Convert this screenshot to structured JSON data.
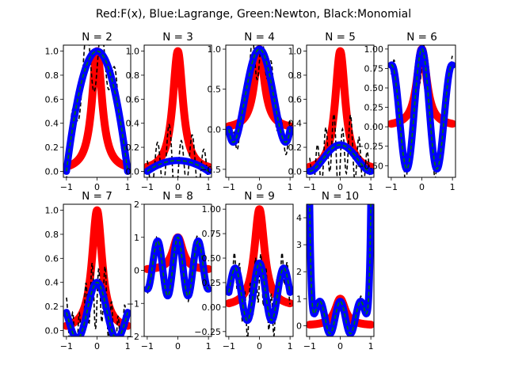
{
  "figure": {
    "suptitle": "Red:F(x), Blue:Lagrange, Green:Newton, Black:Monomial"
  },
  "colors": {
    "function": "#ff0000",
    "lagrange": "#0000ff",
    "newton": "#008000",
    "monomial": "#000000"
  },
  "chart_data": [
    {
      "type": "line",
      "title": "N = 2",
      "xlim": [
        -1,
        1
      ],
      "ylim": [
        -0.05,
        1.05
      ],
      "xticks": [
        -1,
        0,
        1
      ],
      "xtick_labels": [
        "−1",
        "0",
        "1"
      ],
      "yticks": [
        0,
        0.2,
        0.4,
        0.6,
        0.8,
        1.0
      ],
      "ytick_labels": [
        "0.0",
        "0.2",
        "0.4",
        "0.6",
        "0.8",
        "1.0"
      ],
      "interp_kind": "parabola",
      "interp_params": {
        "peak": 1.0
      }
    },
    {
      "type": "line",
      "title": "N = 3",
      "xlim": [
        -1,
        1
      ],
      "ylim": [
        -0.05,
        1.05
      ],
      "xticks": [
        -1,
        0,
        1
      ],
      "xtick_labels": [
        "−1",
        "0",
        "1"
      ],
      "yticks": [
        0,
        0.2,
        0.4,
        0.6,
        0.8,
        1.0
      ],
      "ytick_labels": [
        "0.0",
        "0.2",
        "0.4",
        "0.6",
        "0.8",
        "1.0"
      ],
      "interp_kind": "parabola",
      "interp_params": {
        "peak": 0.09
      }
    },
    {
      "type": "line",
      "title": "N = 4",
      "xlim": [
        -1,
        1
      ],
      "ylim": [
        -0.6,
        1.05
      ],
      "xticks": [
        -1,
        0,
        1
      ],
      "xtick_labels": [
        "−1",
        "0",
        "1"
      ],
      "yticks": [
        -0.5,
        0,
        0.5,
        1.0
      ],
      "ytick_labels": [
        "−0.5",
        "0.0",
        "0.5",
        "1.0"
      ],
      "interp_kind": "even_poly4",
      "interp_params": {
        "peak": 1.0,
        "min": -0.45
      }
    },
    {
      "type": "line",
      "title": "N = 5",
      "xlim": [
        -1,
        1
      ],
      "ylim": [
        -0.05,
        1.05
      ],
      "xticks": [
        -1,
        0,
        1
      ],
      "xtick_labels": [
        "−1",
        "0",
        "1"
      ],
      "yticks": [
        0,
        0.2,
        0.4,
        0.6,
        0.8,
        1.0
      ],
      "ytick_labels": [
        "0.0",
        "0.2",
        "0.4",
        "0.6",
        "0.8",
        "1.0"
      ],
      "interp_kind": "even_poly4",
      "interp_params": {
        "peak": 0.22,
        "min": 0.02
      }
    },
    {
      "type": "line",
      "title": "N = 6",
      "xlim": [
        -1,
        1
      ],
      "ylim": [
        -0.65,
        1.05
      ],
      "xticks": [
        -1,
        0,
        1
      ],
      "xtick_labels": [
        "−1",
        "0",
        "1"
      ],
      "yticks": [
        -0.5,
        -0.25,
        0,
        0.25,
        0.5,
        0.75,
        1.0
      ],
      "ytick_labels": [
        "−0.50",
        "−0.25",
        "0.00",
        "0.25",
        "0.50",
        "0.75",
        "1.00"
      ],
      "interp_kind": "cosine",
      "interp_params": {
        "base": 0.2,
        "amp": 0.8,
        "freq": 2.0
      }
    },
    {
      "type": "line",
      "title": "N = 7",
      "xlim": [
        -1,
        1
      ],
      "ylim": [
        -0.05,
        1.05
      ],
      "xticks": [
        -1,
        0,
        1
      ],
      "xtick_labels": [
        "−1",
        "0",
        "1"
      ],
      "yticks": [
        0,
        0.2,
        0.4,
        0.6,
        0.8,
        1.0
      ],
      "ytick_labels": [
        "0.0",
        "0.2",
        "0.4",
        "0.6",
        "0.8",
        "1.0"
      ],
      "interp_kind": "cosine",
      "interp_params": {
        "base": 0.15,
        "amp": 0.25,
        "freq": 1.5
      }
    },
    {
      "type": "line",
      "title": "N = 8",
      "xlim": [
        -1,
        1
      ],
      "ylim": [
        -2.0,
        2.0
      ],
      "xticks": [
        -1,
        0,
        1
      ],
      "xtick_labels": [
        "−1",
        "0",
        "1"
      ],
      "yticks": [
        -2,
        -1,
        0,
        1,
        2
      ],
      "ytick_labels": [
        "−2",
        "−1",
        "0",
        "1",
        "2"
      ],
      "interp_kind": "cosine",
      "interp_params": {
        "base": 0.1,
        "amp": 0.9,
        "freq": 3.0
      }
    },
    {
      "type": "line",
      "title": "N = 9",
      "xlim": [
        -1,
        1
      ],
      "ylim": [
        -0.3,
        1.05
      ],
      "xticks": [
        -1,
        0,
        1
      ],
      "xtick_labels": [
        "−1",
        "0",
        "1"
      ],
      "yticks": [
        -0.25,
        0,
        0.25,
        0.5,
        0.75,
        1.0
      ],
      "ytick_labels": [
        "−0.25",
        "0.00",
        "0.25",
        "0.50",
        "0.75",
        "1.00"
      ],
      "interp_kind": "cosine",
      "interp_params": {
        "base": 0.15,
        "amp": 0.3,
        "freq": 2.5
      }
    },
    {
      "type": "line",
      "title": "N = 10",
      "xlim": [
        -1,
        1
      ],
      "ylim": [
        -0.4,
        4.5
      ],
      "xticks": [
        -1,
        0,
        1
      ],
      "xtick_labels": [
        "−1",
        "0",
        "1"
      ],
      "yticks": [
        0,
        1,
        2,
        3,
        4
      ],
      "ytick_labels": [
        "0",
        "1",
        "2",
        "3",
        "4"
      ],
      "interp_kind": "cosine_edge",
      "interp_params": {
        "base": 0.3,
        "amp": 0.6,
        "freq": 3.0,
        "edge": 4.3
      }
    }
  ]
}
